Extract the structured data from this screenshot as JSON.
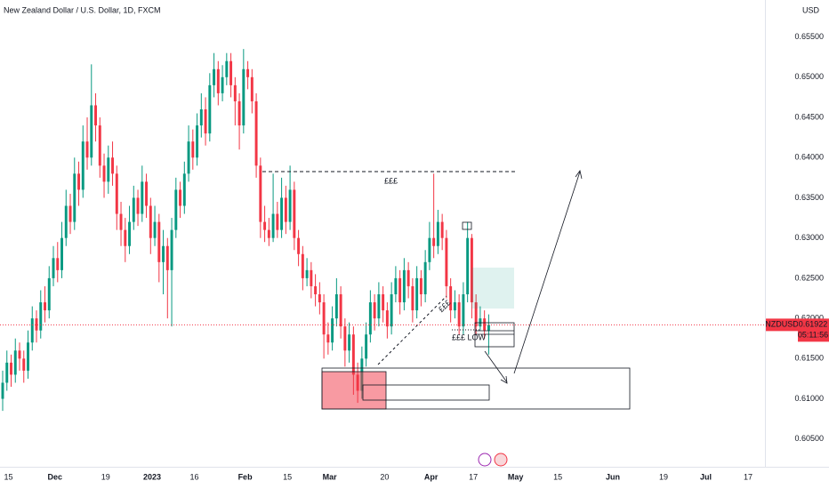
{
  "chart_data": {
    "type": "candlestick",
    "title": "New Zealand Dollar / U.S. Dollar, 1D, FXCM",
    "currency": "USD",
    "symbol": "NZDUSD",
    "last_price": "0.61922",
    "countdown": "05:11:56",
    "annotations": [
      "£££",
      "£££",
      "£££ LOW"
    ],
    "up_color": "#089981",
    "down_color": "#f23645",
    "xlim": [
      0,
      181
    ],
    "ylim": [
      0.6021,
      0.6596
    ],
    "xticks": [
      {
        "value": 2,
        "label": "15"
      },
      {
        "value": 13,
        "label": "Dec"
      },
      {
        "value": 25,
        "label": "19"
      },
      {
        "value": 36,
        "label": "2023"
      },
      {
        "value": 46,
        "label": "16"
      },
      {
        "value": 58,
        "label": "Feb"
      },
      {
        "value": 68,
        "label": "15"
      },
      {
        "value": 78,
        "label": "Mar"
      },
      {
        "value": 91,
        "label": "20"
      },
      {
        "value": 102,
        "label": "Apr"
      },
      {
        "value": 112,
        "label": "17"
      },
      {
        "value": 122,
        "label": "May"
      },
      {
        "value": 132,
        "label": "15"
      },
      {
        "value": 145,
        "label": "Jun"
      },
      {
        "value": 157,
        "label": "19"
      },
      {
        "value": 167,
        "label": "Jul"
      },
      {
        "value": 177,
        "label": "17"
      }
    ],
    "yticks": [
      {
        "value": 0.605,
        "label": "0.60500"
      },
      {
        "value": 0.61,
        "label": "0.61000"
      },
      {
        "value": 0.615,
        "label": "0.61500"
      },
      {
        "value": 0.62,
        "label": "0.62000"
      },
      {
        "value": 0.625,
        "label": "0.62500"
      },
      {
        "value": 0.63,
        "label": "0.63000"
      },
      {
        "value": 0.635,
        "label": "0.63500"
      },
      {
        "value": 0.64,
        "label": "0.64000"
      },
      {
        "value": 0.645,
        "label": "0.64500"
      },
      {
        "value": 0.65,
        "label": "0.65000"
      },
      {
        "value": 0.655,
        "label": "0.65500"
      }
    ],
    "grid": false,
    "ohlc": [
      [
        0.61,
        0.6135,
        0.6085,
        0.612
      ],
      [
        0.612,
        0.616,
        0.611,
        0.6145
      ],
      [
        0.6145,
        0.6155,
        0.6115,
        0.613
      ],
      [
        0.613,
        0.6175,
        0.612,
        0.616
      ],
      [
        0.616,
        0.617,
        0.6135,
        0.615
      ],
      [
        0.615,
        0.616,
        0.612,
        0.6135
      ],
      [
        0.6135,
        0.6185,
        0.6125,
        0.617
      ],
      [
        0.617,
        0.6215,
        0.616,
        0.62
      ],
      [
        0.62,
        0.621,
        0.617,
        0.6185
      ],
      [
        0.6185,
        0.6235,
        0.6175,
        0.622
      ],
      [
        0.622,
        0.624,
        0.6195,
        0.621
      ],
      [
        0.621,
        0.6265,
        0.62,
        0.625
      ],
      [
        0.625,
        0.629,
        0.624,
        0.6275
      ],
      [
        0.6275,
        0.6295,
        0.6245,
        0.626
      ],
      [
        0.626,
        0.632,
        0.625,
        0.63
      ],
      [
        0.63,
        0.636,
        0.629,
        0.634
      ],
      [
        0.634,
        0.6355,
        0.6305,
        0.632
      ],
      [
        0.632,
        0.64,
        0.631,
        0.638
      ],
      [
        0.638,
        0.6395,
        0.634,
        0.636
      ],
      [
        0.636,
        0.644,
        0.635,
        0.642
      ],
      [
        0.642,
        0.645,
        0.6385,
        0.64
      ],
      [
        0.64,
        0.6516,
        0.639,
        0.6465
      ],
      [
        0.6465,
        0.648,
        0.642,
        0.644
      ],
      [
        0.644,
        0.645,
        0.6375,
        0.639
      ],
      [
        0.639,
        0.6405,
        0.635,
        0.637
      ],
      [
        0.637,
        0.6415,
        0.6355,
        0.64
      ],
      [
        0.64,
        0.642,
        0.6365,
        0.638
      ],
      [
        0.638,
        0.639,
        0.631,
        0.633
      ],
      [
        0.633,
        0.6345,
        0.629,
        0.631
      ],
      [
        0.631,
        0.6325,
        0.627,
        0.629
      ],
      [
        0.629,
        0.634,
        0.628,
        0.632
      ],
      [
        0.632,
        0.6365,
        0.631,
        0.635
      ],
      [
        0.635,
        0.636,
        0.6315,
        0.633
      ],
      [
        0.633,
        0.639,
        0.632,
        0.637
      ],
      [
        0.637,
        0.638,
        0.6325,
        0.634
      ],
      [
        0.634,
        0.635,
        0.628,
        0.63
      ],
      [
        0.63,
        0.634,
        0.629,
        0.632
      ],
      [
        0.632,
        0.633,
        0.6245,
        0.627
      ],
      [
        0.627,
        0.631,
        0.623,
        0.629
      ],
      [
        0.629,
        0.63,
        0.62,
        0.626
      ],
      [
        0.626,
        0.6325,
        0.619,
        0.631
      ],
      [
        0.631,
        0.6375,
        0.63,
        0.636
      ],
      [
        0.636,
        0.637,
        0.6325,
        0.634
      ],
      [
        0.634,
        0.6395,
        0.633,
        0.638
      ],
      [
        0.638,
        0.644,
        0.637,
        0.642
      ],
      [
        0.642,
        0.6435,
        0.6385,
        0.64
      ],
      [
        0.64,
        0.6455,
        0.639,
        0.644
      ],
      [
        0.644,
        0.648,
        0.6425,
        0.646
      ],
      [
        0.646,
        0.6475,
        0.6415,
        0.643
      ],
      [
        0.643,
        0.6505,
        0.642,
        0.649
      ],
      [
        0.649,
        0.653,
        0.6475,
        0.651
      ],
      [
        0.651,
        0.652,
        0.6465,
        0.648
      ],
      [
        0.648,
        0.6515,
        0.647,
        0.65
      ],
      [
        0.65,
        0.653,
        0.649,
        0.652
      ],
      [
        0.652,
        0.653,
        0.6475,
        0.649
      ],
      [
        0.649,
        0.65,
        0.644,
        0.647
      ],
      [
        0.647,
        0.648,
        0.641,
        0.644
      ],
      [
        0.644,
        0.6535,
        0.643,
        0.651
      ],
      [
        0.651,
        0.652,
        0.6485,
        0.65
      ],
      [
        0.65,
        0.651,
        0.6455,
        0.647
      ],
      [
        0.647,
        0.648,
        0.6375,
        0.639
      ],
      [
        0.639,
        0.64,
        0.63,
        0.632
      ],
      [
        0.632,
        0.634,
        0.6295,
        0.631
      ],
      [
        0.631,
        0.6325,
        0.629,
        0.63
      ],
      [
        0.63,
        0.638,
        0.6295,
        0.633
      ],
      [
        0.633,
        0.6345,
        0.63,
        0.631
      ],
      [
        0.631,
        0.6375,
        0.63,
        0.635
      ],
      [
        0.635,
        0.6365,
        0.6305,
        0.632
      ],
      [
        0.632,
        0.639,
        0.631,
        0.636
      ],
      [
        0.636,
        0.637,
        0.6285,
        0.63
      ],
      [
        0.63,
        0.631,
        0.6265,
        0.628
      ],
      [
        0.628,
        0.629,
        0.6235,
        0.625
      ],
      [
        0.625,
        0.6275,
        0.624,
        0.626
      ],
      [
        0.626,
        0.627,
        0.6225,
        0.624
      ],
      [
        0.624,
        0.6255,
        0.6215,
        0.623
      ],
      [
        0.623,
        0.6245,
        0.6205,
        0.622
      ],
      [
        0.622,
        0.623,
        0.615,
        0.618
      ],
      [
        0.618,
        0.6195,
        0.6155,
        0.617
      ],
      [
        0.617,
        0.6215,
        0.616,
        0.62
      ],
      [
        0.62,
        0.625,
        0.619,
        0.623
      ],
      [
        0.623,
        0.624,
        0.6175,
        0.619
      ],
      [
        0.619,
        0.62,
        0.614,
        0.616
      ],
      [
        0.616,
        0.6195,
        0.6145,
        0.618
      ],
      [
        0.618,
        0.619,
        0.6105,
        0.613
      ],
      [
        0.613,
        0.6145,
        0.6095,
        0.611
      ],
      [
        0.611,
        0.6165,
        0.61,
        0.615
      ],
      [
        0.615,
        0.6195,
        0.614,
        0.618
      ],
      [
        0.618,
        0.6235,
        0.617,
        0.622
      ],
      [
        0.622,
        0.623,
        0.6185,
        0.62
      ],
      [
        0.62,
        0.6245,
        0.619,
        0.623
      ],
      [
        0.623,
        0.624,
        0.6195,
        0.621
      ],
      [
        0.621,
        0.622,
        0.6175,
        0.619
      ],
      [
        0.619,
        0.6245,
        0.618,
        0.623
      ],
      [
        0.623,
        0.6265,
        0.622,
        0.625
      ],
      [
        0.625,
        0.626,
        0.6205,
        0.622
      ],
      [
        0.622,
        0.6275,
        0.621,
        0.626
      ],
      [
        0.626,
        0.627,
        0.6225,
        0.624
      ],
      [
        0.624,
        0.625,
        0.6195,
        0.621
      ],
      [
        0.621,
        0.6265,
        0.62,
        0.625
      ],
      [
        0.625,
        0.626,
        0.6215,
        0.623
      ],
      [
        0.623,
        0.6285,
        0.622,
        0.627
      ],
      [
        0.627,
        0.632,
        0.626,
        0.63
      ],
      [
        0.63,
        0.638,
        0.6275,
        0.629
      ],
      [
        0.629,
        0.6335,
        0.628,
        0.632
      ],
      [
        0.632,
        0.633,
        0.6285,
        0.63
      ],
      [
        0.63,
        0.631,
        0.6225,
        0.624
      ],
      [
        0.624,
        0.625,
        0.6195,
        0.621
      ],
      [
        0.621,
        0.6235,
        0.62,
        0.622
      ],
      [
        0.622,
        0.623,
        0.618,
        0.619
      ],
      [
        0.619,
        0.6245,
        0.618,
        0.623
      ],
      [
        0.623,
        0.632,
        0.622,
        0.63
      ],
      [
        0.63,
        0.6305,
        0.62,
        0.622
      ],
      [
        0.622,
        0.623,
        0.618,
        0.619
      ],
      [
        0.619,
        0.6215,
        0.6185,
        0.62
      ],
      [
        0.62,
        0.621,
        0.6175,
        0.6185
      ],
      [
        0.6185,
        0.6205,
        0.6155,
        0.6192
      ]
    ]
  }
}
